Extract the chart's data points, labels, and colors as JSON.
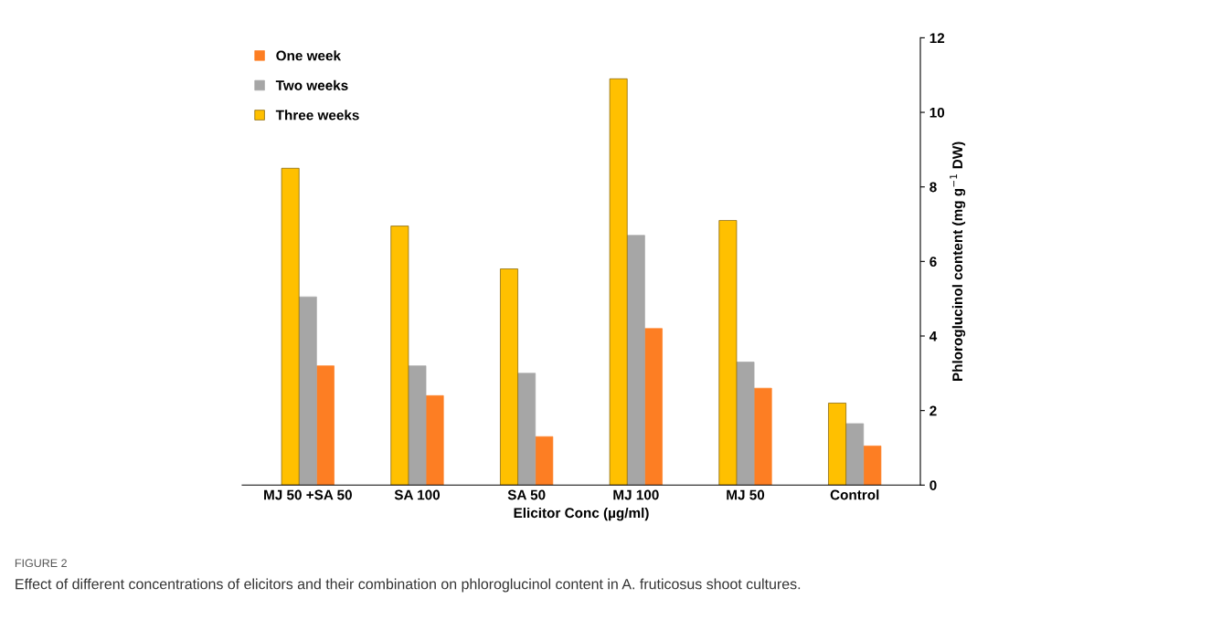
{
  "chart_data": {
    "type": "bar",
    "xlabel": "Elicitor Conc (µg/ml)",
    "ylabel": "Phloroglucinol content (mg g$^{−1}$ DW)",
    "categories": [
      "MJ 50 +SA 50",
      "SA 100",
      "SA 50",
      "MJ 100",
      "MJ 50",
      "Control"
    ],
    "series": [
      {
        "name": "One week",
        "color": "#fd7e23",
        "values": [
          3.2,
          2.4,
          1.3,
          4.2,
          2.6,
          1.05
        ]
      },
      {
        "name": "Two weeks",
        "color": "#a6a6a6",
        "values": [
          5.05,
          3.2,
          3.0,
          6.7,
          3.3,
          1.65
        ]
      },
      {
        "name": "Three weeks",
        "color": "#ffc000",
        "values": [
          8.5,
          6.95,
          5.8,
          10.9,
          7.1,
          2.2
        ]
      }
    ],
    "ylim": [
      0,
      12
    ],
    "yticks": [
      0,
      2,
      4,
      6,
      8,
      10,
      12
    ],
    "grid": false,
    "legend": "top left",
    "annotations": [
      "FIGURE 2",
      "Effect of different concentrations of elicitors and their combination on phloroglucinol content in A. fruticosus shoot cultures."
    ]
  }
}
